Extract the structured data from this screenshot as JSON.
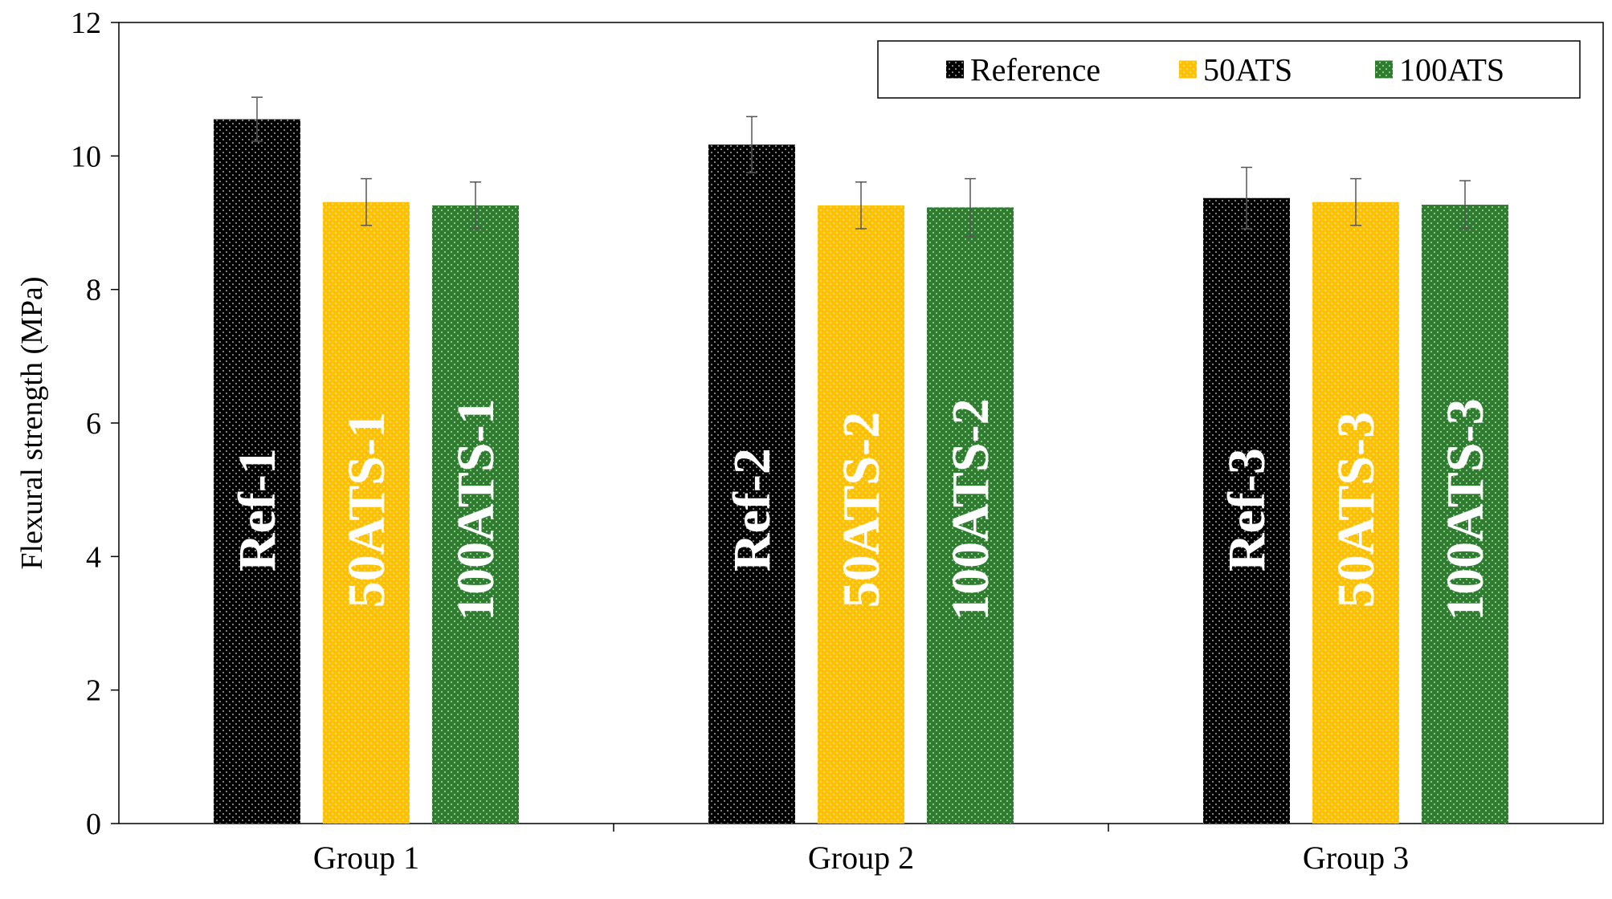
{
  "chart_data": {
    "type": "bar",
    "categories": [
      "Group 1",
      "Group 2",
      "Group 3"
    ],
    "series": [
      {
        "name": "Reference",
        "color": "#000000",
        "values": [
          10.55,
          10.17,
          9.37
        ],
        "errors": [
          0.33,
          0.42,
          0.46
        ],
        "labels": [
          "Ref-1",
          "Ref-2",
          "Ref-3"
        ]
      },
      {
        "name": "50ATS",
        "color": "#FFC000",
        "values": [
          9.31,
          9.26,
          9.31
        ],
        "errors": [
          0.35,
          0.35,
          0.35
        ],
        "labels": [
          "50ATS-1",
          "50ATS-2",
          "50ATS-3"
        ]
      },
      {
        "name": "100ATS",
        "color": "#2E7D2E",
        "values": [
          9.26,
          9.23,
          9.27
        ],
        "errors": [
          0.35,
          0.43,
          0.36
        ],
        "labels": [
          "100ATS-1",
          "100ATS-2",
          "100ATS-3"
        ]
      }
    ],
    "title": "",
    "xlabel": "",
    "ylabel": "Flexural strength (MPa)",
    "ylim": [
      0,
      12
    ],
    "yticks": [
      0,
      2,
      4,
      6,
      8,
      10,
      12
    ],
    "grid": false,
    "legend_position": "top-right",
    "bar_pattern": "dotted"
  }
}
